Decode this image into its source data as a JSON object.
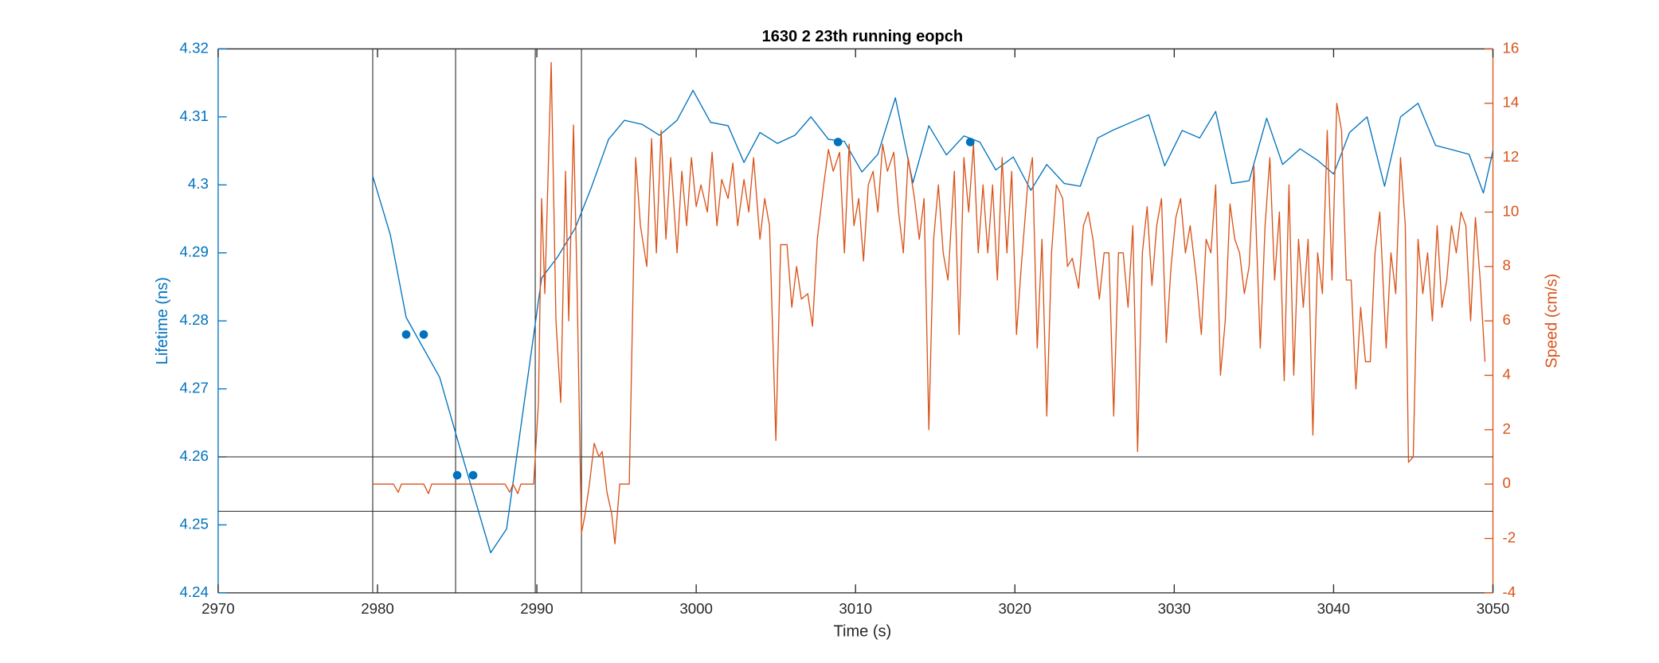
{
  "chart_data": {
    "type": "line",
    "title": "1630 2 23th running eopch",
    "xlabel": "Time (s)",
    "ylabel": "Lifetime (ns)",
    "y2label": "Speed (cm/s)",
    "xlim": [
      2970,
      3050
    ],
    "xticks": [
      2970,
      2980,
      2990,
      3000,
      3010,
      3020,
      3030,
      3040,
      3050
    ],
    "ylim": [
      4.24,
      4.32
    ],
    "yticks": [
      4.24,
      4.25,
      4.26,
      4.27,
      4.28,
      4.29,
      4.3,
      4.31,
      4.32
    ],
    "y2lim": [
      -4,
      16
    ],
    "y2ticks": [
      -4,
      -2,
      0,
      2,
      4,
      6,
      8,
      10,
      12,
      14,
      16
    ],
    "ycolor": "#0072bd",
    "y2color": "#d95319",
    "vlines": [
      2979.7,
      2984.9,
      2989.9,
      2992.8
    ],
    "hlines": [
      4.26,
      4.252
    ],
    "refline_color": "#262626",
    "series": [
      {
        "color": "#0072bd",
        "axis": "y",
        "x": [
          2979.7,
          2980.8,
          2981.8,
          2983.9,
          2985.0,
          2987.1,
          2988.1,
          2990.3,
          2991.3,
          2992.4,
          2993.4,
          2994.5,
          2995.5,
          2996.6,
          2997.7,
          2998.8,
          2999.8,
          3000.9,
          3002.0,
          3003.0,
          3004.0,
          3005.1,
          3006.2,
          3007.2,
          3008.3,
          3009.3,
          3010.4,
          3011.4,
          3012.5,
          3013.6,
          3014.6,
          3015.7,
          3016.8,
          3017.8,
          3018.8,
          3019.9,
          3021.0,
          3022.0,
          3023.1,
          3024.1,
          3025.2,
          3026.2,
          3027.3,
          3028.4,
          3029.4,
          3030.5,
          3031.6,
          3032.6,
          3033.6,
          3034.7,
          3035.8,
          3036.8,
          3037.9,
          3039.0,
          3040.0,
          3041.0,
          3042.1,
          3043.2,
          3044.2,
          3045.3,
          3046.4,
          3047.4,
          3048.5,
          3049.4,
          3050.0
        ],
        "values": [
          4.3013,
          4.2927,
          4.2805,
          4.2717,
          4.2627,
          4.2459,
          4.2494,
          4.2863,
          4.2894,
          4.2936,
          4.2995,
          4.3067,
          4.3095,
          4.3089,
          4.3073,
          4.3095,
          4.3139,
          4.3092,
          4.3087,
          4.3033,
          4.3077,
          4.3061,
          4.3073,
          4.31,
          4.3067,
          4.3064,
          4.3019,
          4.3045,
          4.3128,
          4.3003,
          4.3087,
          4.3044,
          4.3072,
          4.3063,
          4.3022,
          4.3041,
          4.2992,
          4.303,
          4.3002,
          4.2998,
          4.3069,
          4.3081,
          4.3092,
          4.3103,
          4.3028,
          4.308,
          4.3069,
          4.3108,
          4.3002,
          4.3006,
          4.3098,
          4.303,
          4.3053,
          4.3036,
          4.3016,
          4.3077,
          4.31,
          4.2998,
          4.31,
          4.312,
          4.3058,
          4.3052,
          4.3045,
          4.2988,
          4.305
        ]
      },
      {
        "color": "#d95319",
        "axis": "y2",
        "x": [
          2979.7,
          2981.0,
          2981.3,
          2981.5,
          2982.9,
          2983.2,
          2983.4,
          2988.0,
          2988.3,
          2988.5,
          2988.8,
          2989.0,
          2989.8,
          2990.1,
          2990.3,
          2990.5,
          2990.9,
          2991.2,
          2991.5,
          2991.8,
          2992.0,
          2992.3,
          2992.5,
          2992.8,
          2993.0,
          2993.3,
          2993.6,
          2993.9,
          2994.1,
          2994.4,
          2994.7,
          2994.9,
          2995.2,
          2995.5,
          2995.8,
          2996.2,
          2996.5,
          2996.9,
          2997.2,
          2997.5,
          2997.8,
          2998.1,
          2998.4,
          2998.8,
          2999.1,
          2999.4,
          2999.7,
          3000.0,
          3000.3,
          3000.7,
          3001.0,
          3001.3,
          3001.6,
          3002.0,
          3002.3,
          3002.6,
          3003.0,
          3003.3,
          3003.6,
          3004.0,
          3004.3,
          3004.6,
          3005.0,
          3005.3,
          3005.7,
          3006.0,
          3006.3,
          3006.6,
          3007.0,
          3007.3,
          3007.6,
          3008.0,
          3008.3,
          3008.6,
          3009.0,
          3009.3,
          3009.6,
          3009.9,
          3010.2,
          3010.5,
          3010.8,
          3011.1,
          3011.4,
          3011.7,
          3012.0,
          3012.4,
          3012.7,
          3013.0,
          3013.3,
          3013.7,
          3014.0,
          3014.3,
          3014.6,
          3014.9,
          3015.2,
          3015.5,
          3015.8,
          3016.2,
          3016.5,
          3016.8,
          3017.1,
          3017.4,
          3017.7,
          3018.0,
          3018.3,
          3018.6,
          3018.9,
          3019.2,
          3019.5,
          3019.8,
          3020.1,
          3020.4,
          3020.8,
          3021.1,
          3021.4,
          3021.7,
          3022.0,
          3022.3,
          3022.6,
          3023.0,
          3023.3,
          3023.6,
          3024.0,
          3024.3,
          3024.6,
          3024.9,
          3025.3,
          3025.6,
          3025.9,
          3026.2,
          3026.5,
          3026.8,
          3027.1,
          3027.4,
          3027.7,
          3028.0,
          3028.3,
          3028.6,
          3028.9,
          3029.2,
          3029.5,
          3029.8,
          3030.1,
          3030.4,
          3030.7,
          3031.0,
          3031.4,
          3031.7,
          3032.0,
          3032.3,
          3032.6,
          3032.9,
          3033.2,
          3033.5,
          3033.8,
          3034.1,
          3034.4,
          3034.7,
          3035.0,
          3035.4,
          3035.7,
          3036.0,
          3036.3,
          3036.6,
          3036.9,
          3037.2,
          3037.5,
          3037.8,
          3038.1,
          3038.4,
          3038.7,
          3039.0,
          3039.3,
          3039.6,
          3039.9,
          3040.2,
          3040.5,
          3040.8,
          3041.1,
          3041.4,
          3041.7,
          3042.0,
          3042.3,
          3042.6,
          3042.9,
          3043.3,
          3043.6,
          3043.9,
          3044.2,
          3044.5,
          3044.7,
          3045.0,
          3045.3,
          3045.6,
          3045.9,
          3046.2,
          3046.5,
          3046.8,
          3047.1,
          3047.4,
          3047.7,
          3048.0,
          3048.3,
          3048.6,
          3048.9,
          3049.2,
          3049.5
        ],
        "values": [
          0,
          0,
          -0.3,
          0,
          0,
          -0.35,
          0,
          0,
          -0.3,
          0,
          -0.35,
          0,
          0,
          3,
          10.5,
          7,
          15.5,
          6,
          3,
          11.5,
          6,
          13.2,
          8,
          -1.8,
          -1.2,
          0,
          1.5,
          1.0,
          1.2,
          -0.3,
          -1.1,
          -2.2,
          0,
          0,
          0,
          12,
          9.5,
          8,
          12.7,
          8.5,
          13,
          9,
          12,
          8.5,
          11.5,
          9.5,
          12,
          10.2,
          11,
          10,
          12.2,
          9.5,
          11.2,
          10.5,
          11.8,
          9.5,
          11.2,
          10,
          12,
          9,
          10.5,
          9.5,
          1.6,
          8.8,
          8.8,
          6.5,
          8,
          6.8,
          7,
          5.8,
          9,
          11,
          12.3,
          11.5,
          12.2,
          8.5,
          12.5,
          9.5,
          10.5,
          8.2,
          11,
          11.5,
          10,
          12.5,
          11.5,
          12.2,
          10,
          8.5,
          12,
          10.5,
          9,
          10.5,
          2,
          9,
          11,
          8.5,
          7.5,
          11.5,
          5.5,
          12,
          10,
          12.5,
          8.5,
          11,
          8.5,
          11,
          7.5,
          12,
          8.5,
          11.5,
          5.5,
          8,
          11,
          12,
          5,
          9,
          2.5,
          8.5,
          11,
          10.5,
          8,
          8.3,
          7.2,
          9.5,
          10,
          9,
          6.8,
          8.5,
          8.5,
          2.5,
          8.5,
          8.5,
          6.5,
          9.5,
          1.2,
          8.5,
          10.2,
          7.3,
          9.5,
          10.5,
          5.2,
          8,
          9.8,
          10.5,
          8.5,
          9.5,
          7.5,
          5.5,
          9,
          8.5,
          11,
          4,
          6,
          10.3,
          9,
          8.5,
          7,
          8,
          11.7,
          5,
          9.5,
          12,
          7.5,
          10,
          3.8,
          11,
          4,
          9,
          6.5,
          9,
          1.8,
          8.5,
          7,
          13,
          7.5,
          14,
          13,
          7.5,
          7.5,
          3.5,
          6.5,
          4.5,
          4.5,
          8.5,
          10,
          5,
          8.5,
          7,
          12,
          9.5,
          0.8,
          1,
          9,
          7,
          8.5,
          6,
          9.5,
          6.5,
          7.5,
          9.5,
          8.5,
          10,
          9.5,
          6,
          9.8,
          7.5,
          4.5
        ]
      },
      {
        "color": "#0072bd",
        "axis": "y",
        "marker": "dot",
        "line": false,
        "x": [
          2981.8,
          2982.9,
          2985.0,
          2986.0,
          3008.9,
          3017.2
        ],
        "values": [
          4.278,
          4.278,
          4.2573,
          4.2573,
          4.3063,
          4.3063
        ]
      }
    ]
  }
}
